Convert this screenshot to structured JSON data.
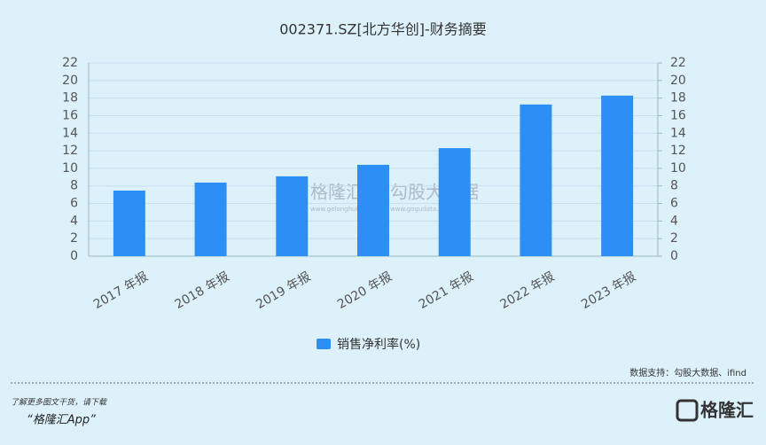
{
  "chart_data": {
    "type": "bar",
    "title": "002371.SZ[北方华创]-财务摘要",
    "categories": [
      "2017 年报",
      "2018 年报",
      "2019 年报",
      "2020 年报",
      "2021 年报",
      "2022 年报",
      "2023 年报"
    ],
    "series": [
      {
        "name": "销售净利率(%)",
        "color": "#2b8ff5",
        "values": [
          7.47,
          8.38,
          9.09,
          10.4,
          12.3,
          17.27,
          18.28
        ]
      }
    ],
    "ylim": [
      0,
      22
    ],
    "yticks": [
      0,
      2,
      4,
      6,
      8,
      10,
      12,
      14,
      16,
      18,
      20,
      22
    ],
    "y2lim": [
      0,
      22
    ],
    "y2ticks": [
      0,
      2,
      4,
      6,
      8,
      10,
      12,
      14,
      16,
      18,
      20,
      22
    ],
    "grid": true,
    "legend": "bottom"
  },
  "source": "数据支持：勾股大数据、ifind",
  "footer": {
    "line1": "了解更多图文干货，请下载",
    "line2": "“格隆汇App”",
    "logo": "格隆汇"
  },
  "watermark": {
    "brand1": "格隆汇",
    "url1": "www.gelonghui.com",
    "brand2": "勾股大数据",
    "url2": "www.gogudata.com"
  }
}
